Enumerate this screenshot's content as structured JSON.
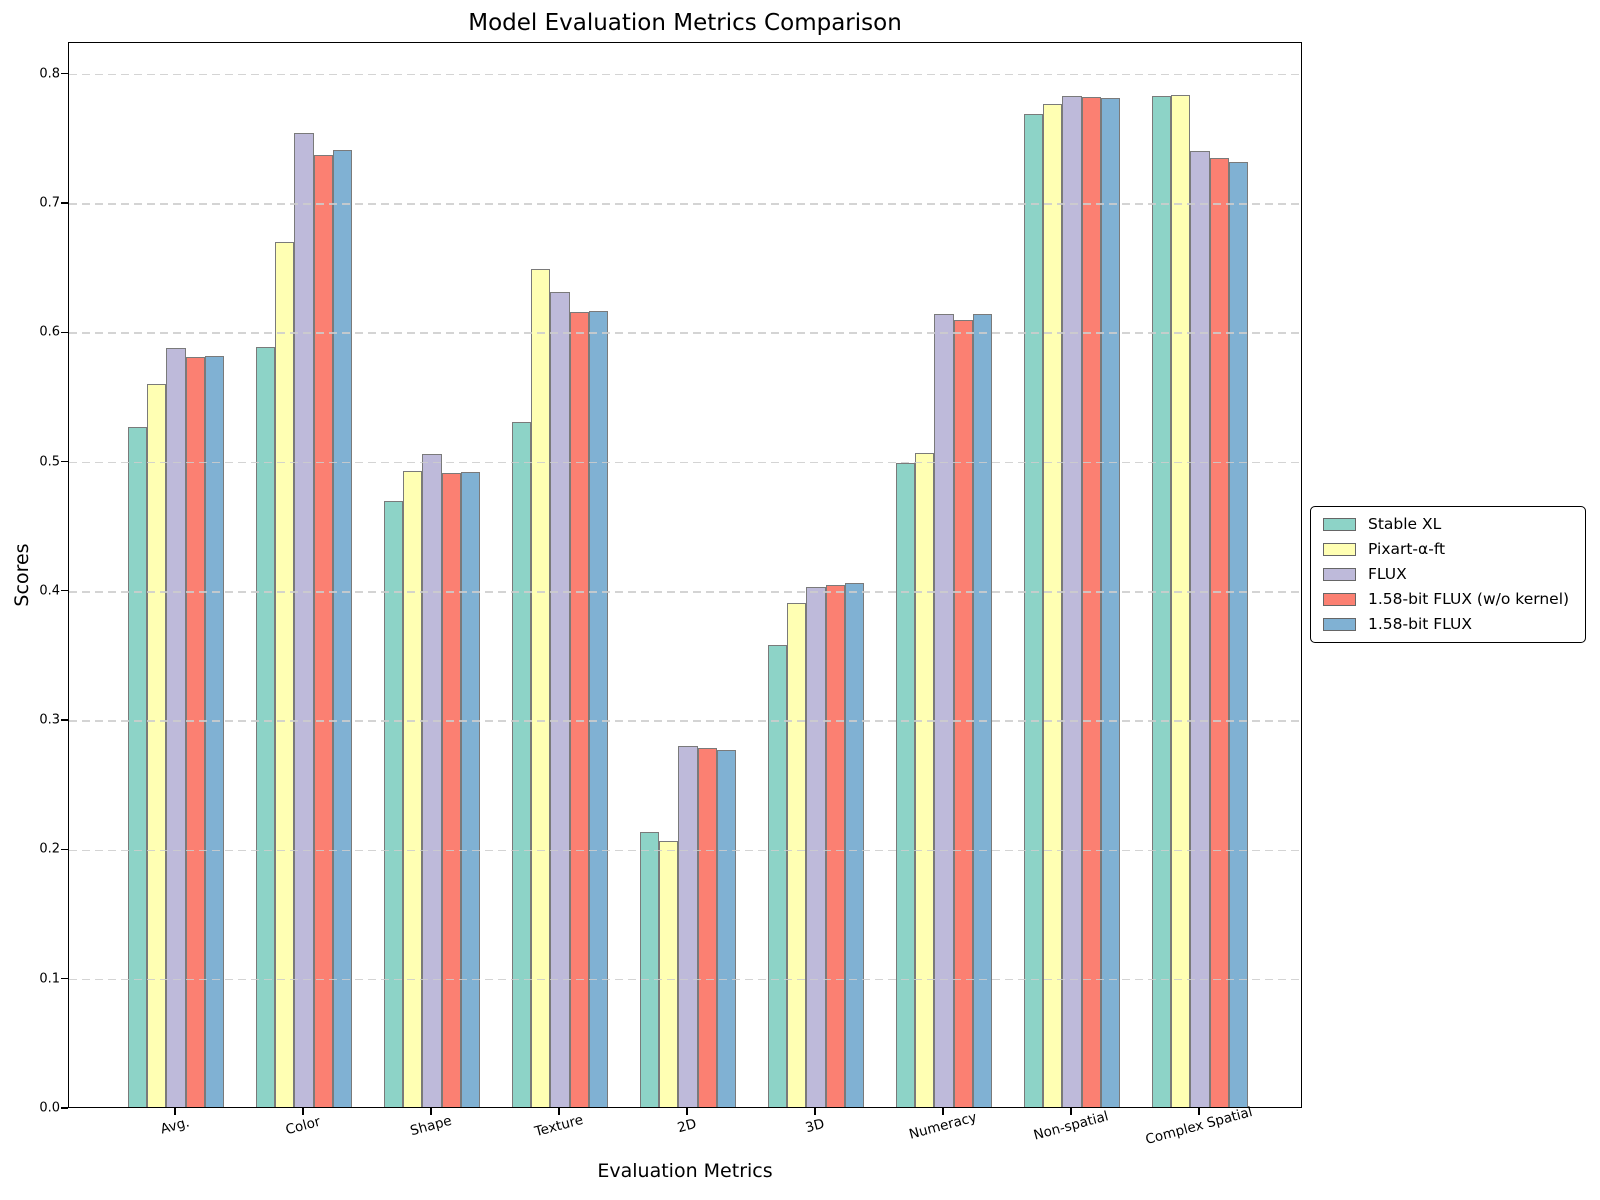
{
  "chart_data": {
    "type": "bar",
    "title": "Model Evaluation Metrics Comparison",
    "xlabel": "Evaluation Metrics",
    "ylabel": "Scores",
    "categories": [
      "Avg.",
      "Color",
      "Shape",
      "Texture",
      "2D",
      "3D",
      "Numeracy",
      "Non-spatial",
      "Complex Spatial"
    ],
    "series": [
      {
        "name": "Stable XL",
        "color": "#8dd3c7",
        "values": [
          0.526,
          0.588,
          0.469,
          0.53,
          0.213,
          0.357,
          0.498,
          0.768,
          0.782
        ]
      },
      {
        "name": "Pixart-α-ft",
        "color": "#ffffb3",
        "values": [
          0.559,
          0.669,
          0.492,
          0.648,
          0.206,
          0.39,
          0.506,
          0.776,
          0.783
        ]
      },
      {
        "name": "FLUX",
        "color": "#bebada",
        "values": [
          0.587,
          0.753,
          0.505,
          0.63,
          0.279,
          0.402,
          0.613,
          0.782,
          0.739
        ]
      },
      {
        "name": "1.58-bit FLUX (w/o kernel)",
        "color": "#fb8072",
        "values": [
          0.58,
          0.736,
          0.49,
          0.615,
          0.278,
          0.404,
          0.609,
          0.781,
          0.734
        ]
      },
      {
        "name": "1.58-bit FLUX",
        "color": "#80b1d3",
        "values": [
          0.581,
          0.74,
          0.491,
          0.616,
          0.276,
          0.405,
          0.613,
          0.78,
          0.731
        ]
      }
    ],
    "ylim": [
      0.0,
      0.824
    ],
    "yticks": [
      "0.0",
      "0.1",
      "0.2",
      "0.3",
      "0.4",
      "0.5",
      "0.6",
      "0.7",
      "0.8"
    ],
    "grid": "horizontal-dashed",
    "legend_position": "outside-right",
    "bar_edge_color": "#7a7a7a"
  }
}
